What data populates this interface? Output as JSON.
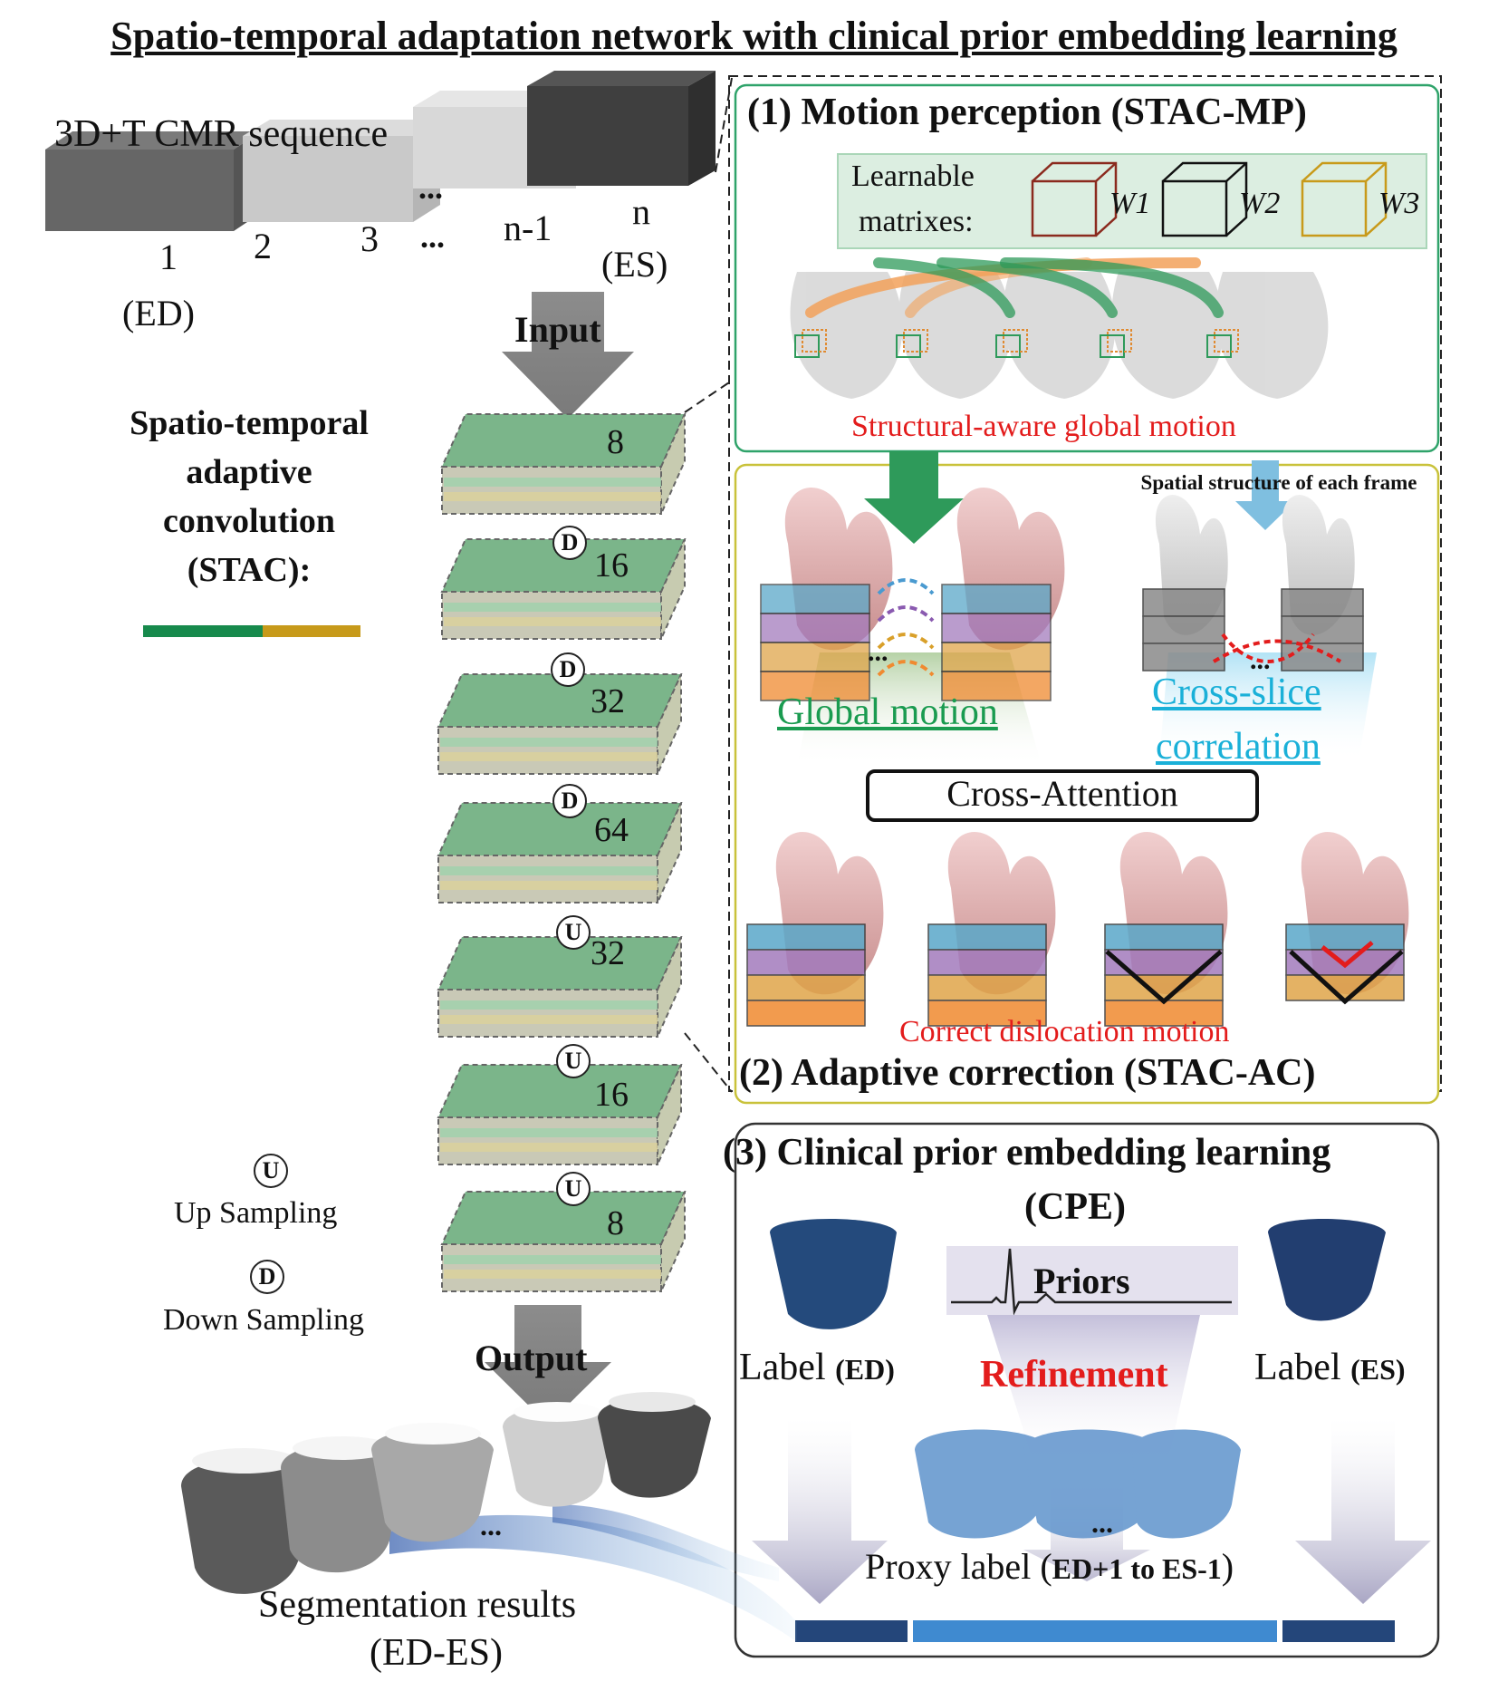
{
  "title": "Spatio-temporal adaptation network with clinical prior embedding learning",
  "sequence": {
    "label": "3D+T CMR sequence",
    "frames": [
      "1",
      "2",
      "3",
      "...",
      "n-1",
      "n"
    ],
    "frame_notes": {
      "first": "(ED)",
      "last": "(ES)"
    },
    "dots": "...",
    "colors": [
      "#555555",
      "#c8c8c8",
      "#bdbdbd",
      "#e0e0e0",
      "#3a3a3a"
    ]
  },
  "arrows": {
    "input": "Input",
    "output": "Output"
  },
  "legend": {
    "stac_label": "Spatio-temporal\nadaptive\nconvolution\n(STAC):",
    "bar_colors": [
      "#178a4c",
      "#c79a1a"
    ],
    "up_symbol": "U",
    "up_label": "Up Sampling",
    "down_symbol": "D",
    "down_label": "Down Sampling"
  },
  "blocks": {
    "channels": [
      "8",
      "16",
      "32",
      "64",
      "32",
      "16",
      "8"
    ],
    "ops": [
      "D",
      "D",
      "D",
      "U",
      "U",
      "U"
    ]
  },
  "mp": {
    "heading": "(1) Motion perception (STAC-MP)",
    "matrix_label_1": "Learnable",
    "matrix_label_2": "matrixes:",
    "weights": [
      "W1",
      "W2",
      "W3"
    ],
    "weight_colors": [
      "#8b2a1e",
      "#111111",
      "#c89a1a"
    ],
    "caption": "Structural-aware global motion"
  },
  "ac": {
    "spatial_note": "Spatial structure of each frame",
    "global_motion": "Global motion",
    "cross_slice_1": "Cross-slice",
    "cross_slice_2": "correlation",
    "cross_attention": "Cross-Attention",
    "dislocation": "Correct dislocation motion",
    "heading": "(2) Adaptive correction (STAC-AC)",
    "dots": "..."
  },
  "cpe": {
    "heading_1": "(3) Clinical prior embedding learning",
    "heading_2": "(CPE)",
    "priors": "Priors",
    "refinement": "Refinement",
    "label_ed_word": "Label",
    "label_ed_tag": "(ED)",
    "label_es_word": "Label",
    "label_es_tag": "(ES)",
    "proxy_word": "Proxy label",
    "proxy_tag_open": "(",
    "proxy_tag": "ED+1 to ES-1",
    "proxy_tag_close": ")",
    "dots": "..."
  },
  "segmentation": {
    "label_1": "Segmentation results",
    "label_2": "(ED-ES)",
    "dots": "..."
  }
}
